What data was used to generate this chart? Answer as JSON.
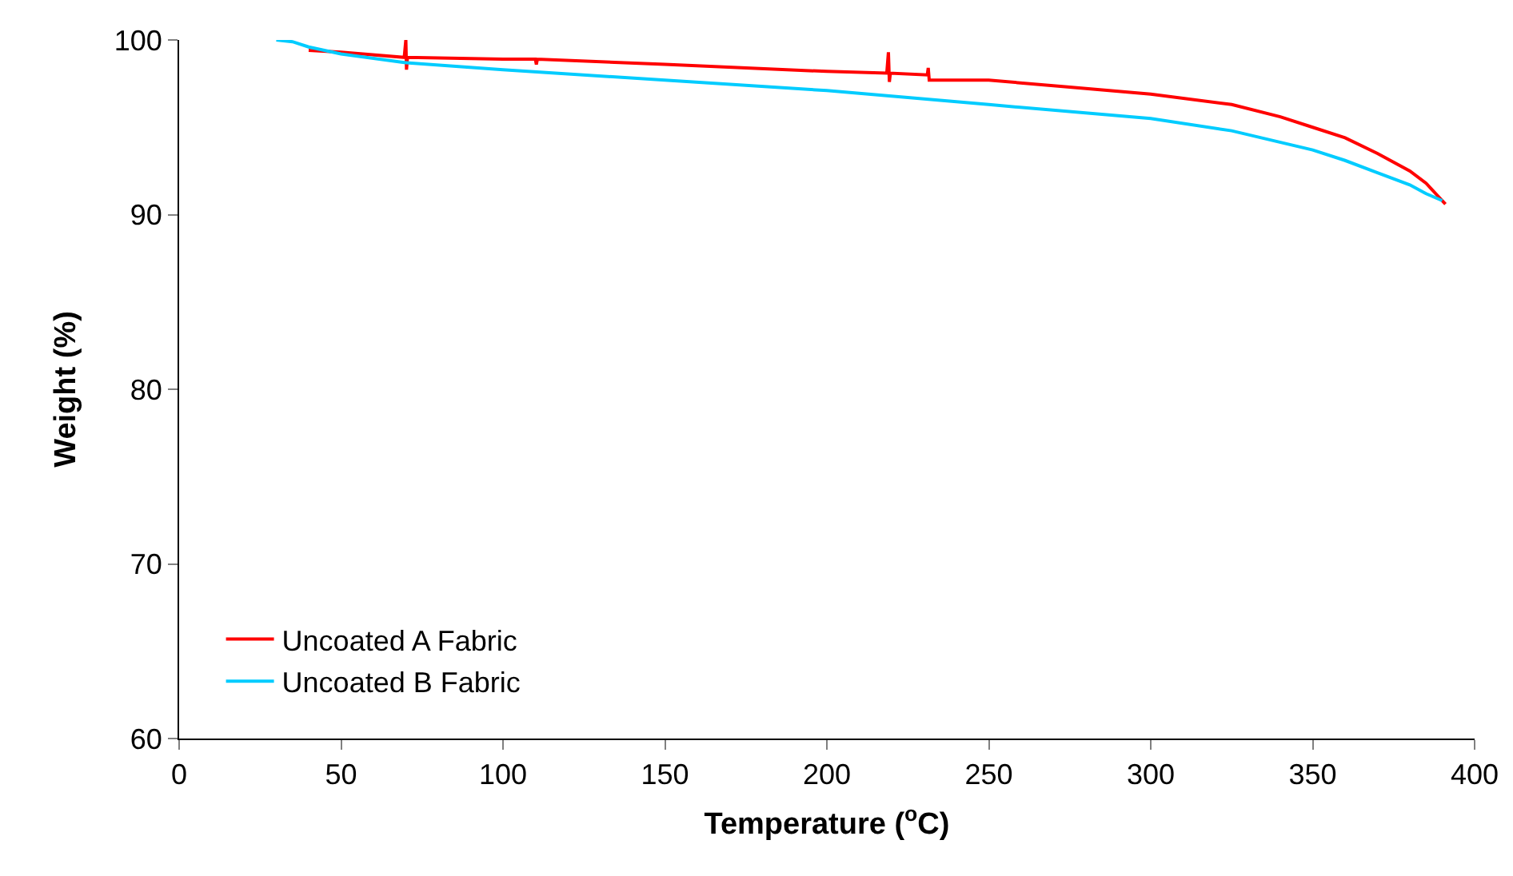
{
  "chart_data": {
    "type": "line",
    "xlabel": "Temperature ($^{o}$C)",
    "ylabel": "Weight (%)",
    "xlim": [
      0,
      400
    ],
    "xticks": [
      0,
      50,
      100,
      150,
      200,
      250,
      300,
      350,
      400
    ],
    "ylim": [
      60,
      100
    ],
    "yticks": [
      60,
      70,
      80,
      90,
      100
    ],
    "grid": false,
    "legend": "bottom left",
    "marker": "none",
    "line_style": "solid",
    "series": [
      {
        "name": "Uncoated A Fabric",
        "color": "#ff0000",
        "x": [
          40,
          50,
          69.5,
          70,
          70.2,
          70.5,
          100,
          110,
          110.3,
          110.6,
          150,
          200,
          218.5,
          219,
          219.3,
          219.6,
          231,
          231.3,
          231.6,
          250,
          275,
          300,
          325,
          340,
          350,
          360,
          370,
          380,
          385,
          390,
          391
        ],
        "values": [
          99.4,
          99.3,
          99.0,
          100.0,
          98.3,
          99.0,
          98.9,
          98.9,
          98.6,
          98.9,
          98.6,
          98.2,
          98.1,
          99.3,
          97.6,
          98.1,
          98.0,
          98.4,
          97.7,
          97.7,
          97.3,
          96.9,
          96.3,
          95.6,
          95.0,
          94.4,
          93.5,
          92.5,
          91.8,
          90.8,
          90.6
        ]
      },
      {
        "name": "Uncoated B Fabric",
        "color": "#00ccff",
        "x": [
          30,
          35,
          40,
          50,
          70,
          100,
          150,
          200,
          250,
          300,
          325,
          350,
          360,
          370,
          380,
          385,
          390
        ],
        "values": [
          100,
          99.9,
          99.6,
          99.2,
          98.7,
          98.3,
          97.7,
          97.1,
          96.3,
          95.5,
          94.8,
          93.7,
          93.1,
          92.4,
          91.7,
          91.2,
          90.8
        ]
      }
    ]
  }
}
